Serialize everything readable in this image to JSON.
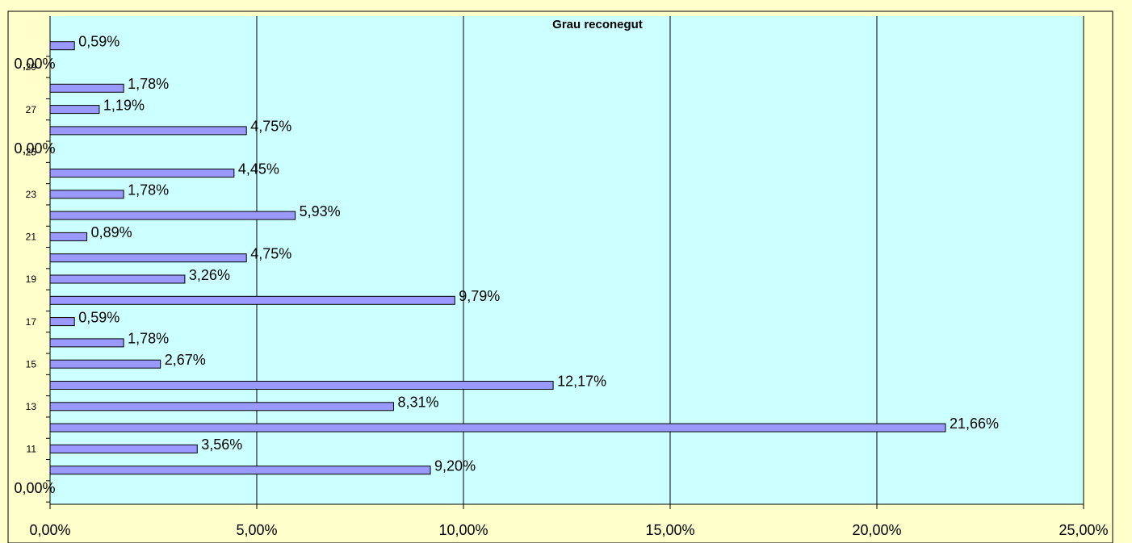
{
  "chart_data": {
    "type": "bar",
    "orientation": "horizontal",
    "title": "Grau reconegut",
    "categories": [
      null,
      null,
      "11",
      null,
      "13",
      null,
      "15",
      null,
      "17",
      null,
      "19",
      null,
      "21",
      null,
      "23",
      null,
      "25",
      null,
      "27",
      null,
      "29",
      null
    ],
    "values": [
      0,
      9.2,
      3.56,
      21.66,
      8.31,
      12.17,
      2.67,
      1.78,
      0.59,
      9.79,
      3.26,
      4.75,
      0.89,
      5.93,
      1.78,
      4.45,
      0,
      4.75,
      1.19,
      1.78,
      0,
      0.59
    ],
    "value_labels": [
      "0,00%",
      "9,20%",
      "3,56%",
      "21,66%",
      "8,31%",
      "12,17%",
      "2,67%",
      "1,78%",
      "0,59%",
      "9,79%",
      "3,26%",
      "4,75%",
      "0,89%",
      "5,93%",
      "1,78%",
      "4,45%",
      "0,00%",
      "4,75%",
      "1,19%",
      "1,78%",
      "0,00%",
      "0,59%"
    ],
    "color": "#9999ff",
    "xlim": [
      0,
      25
    ],
    "xticks": [
      {
        "value": 0,
        "label": "0,00%"
      },
      {
        "value": 5,
        "label": "5,00%"
      },
      {
        "value": 10,
        "label": "10,00%"
      },
      {
        "value": 15,
        "label": "15,00%"
      },
      {
        "value": 20,
        "label": "20,00%"
      },
      {
        "value": 25,
        "label": "25,00%"
      }
    ],
    "grid": true
  }
}
